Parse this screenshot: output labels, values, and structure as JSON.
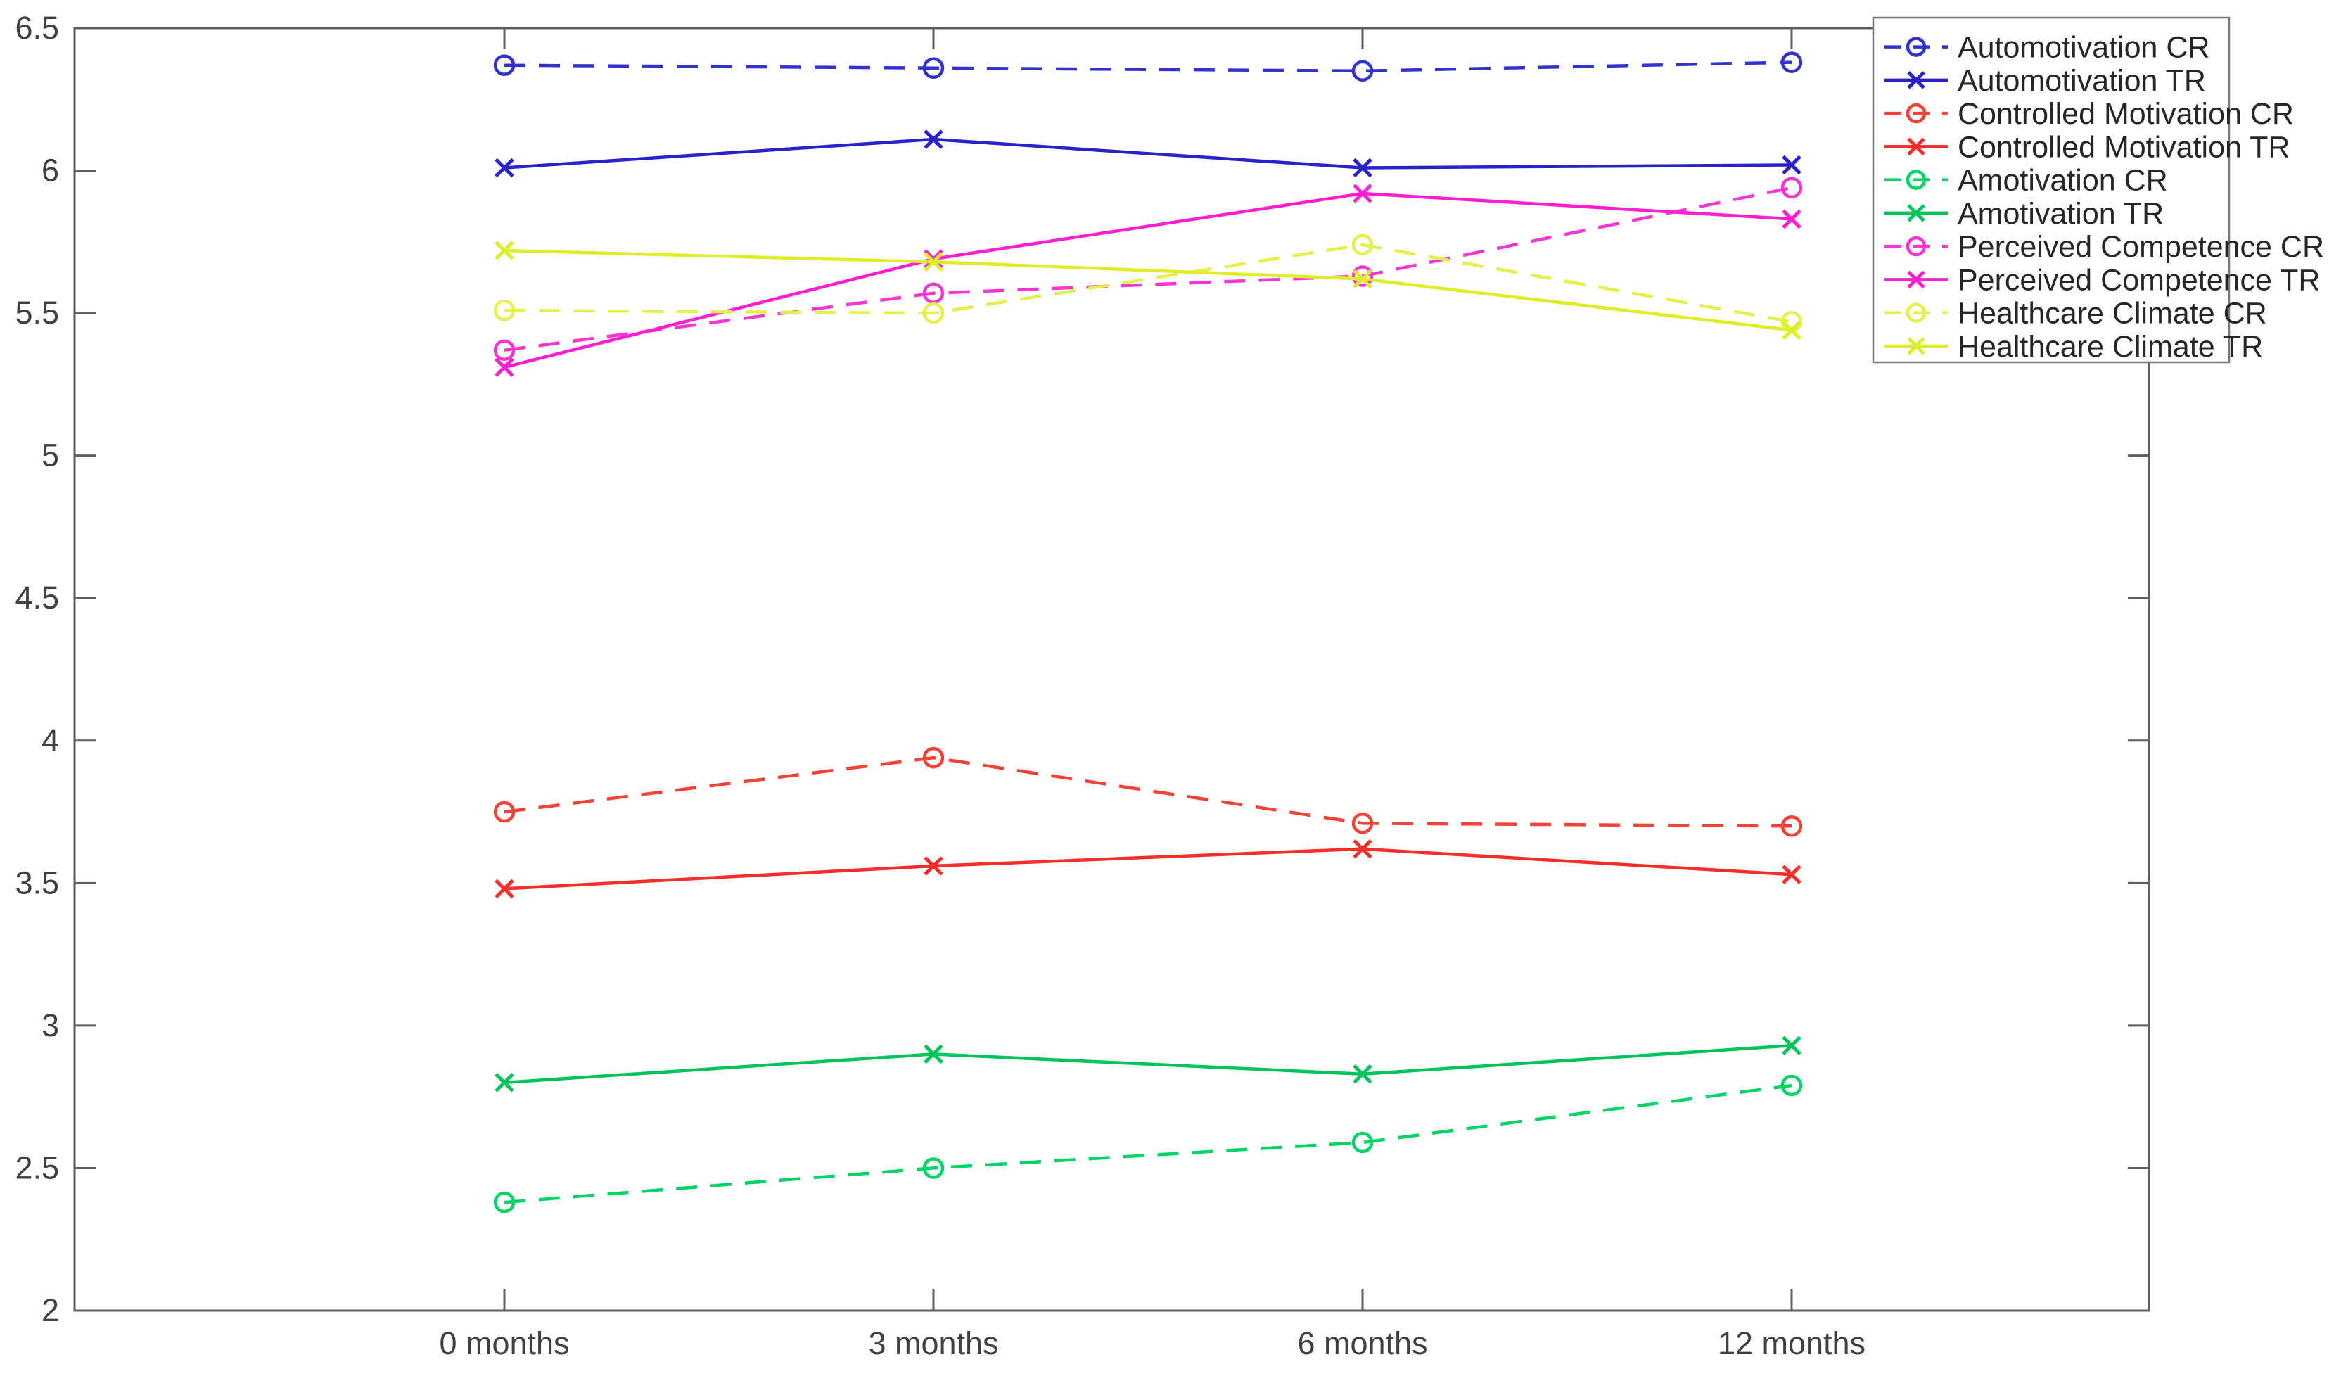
{
  "figure": {
    "background": "#ffffff",
    "axis_color": "#5e5e5e",
    "label_color": "#404040"
  },
  "chart_data": {
    "type": "line",
    "title": "",
    "xlabel": "",
    "ylabel": "",
    "categories": [
      "0 months",
      "3 months",
      "6 months",
      "12 months"
    ],
    "ylim": [
      2,
      6.5
    ],
    "ytick_labels": [
      "6.5",
      "6",
      "5.5",
      "5",
      "4.5",
      "4",
      "3.5",
      "3",
      "2.5",
      "2"
    ],
    "ytick_values": [
      6.5,
      6,
      5.5,
      5,
      4.5,
      4,
      3.5,
      3,
      2.5,
      2
    ],
    "grid": false,
    "legend_position": "northeast",
    "series": [
      {
        "name": "Automotivation CR",
        "color": "#3232cd",
        "line": "dashed",
        "marker": "circle",
        "values": [
          6.37,
          6.36,
          6.35,
          6.38
        ]
      },
      {
        "name": "Automotivation TR",
        "color": "#2b21c8",
        "line": "solid",
        "marker": "x",
        "values": [
          6.01,
          6.11,
          6.01,
          6.02
        ]
      },
      {
        "name": "Controlled Motivation CR",
        "color": "#f44336",
        "line": "dashed",
        "marker": "circle",
        "values": [
          3.75,
          3.94,
          3.71,
          3.7
        ]
      },
      {
        "name": "Controlled Motivation TR",
        "color": "#f42e28",
        "line": "solid",
        "marker": "x",
        "values": [
          3.48,
          3.56,
          3.62,
          3.53
        ]
      },
      {
        "name": "Amotivation CR",
        "color": "#00d466",
        "line": "dashed",
        "marker": "circle",
        "values": [
          2.38,
          2.5,
          2.59,
          2.79
        ]
      },
      {
        "name": "Amotivation TR",
        "color": "#00c35c",
        "line": "solid",
        "marker": "x",
        "values": [
          2.8,
          2.9,
          2.83,
          2.93
        ]
      },
      {
        "name": "Perceived Competence CR",
        "color": "#f536d2",
        "line": "dashed",
        "marker": "circle",
        "values": [
          5.37,
          5.57,
          5.63,
          5.94
        ]
      },
      {
        "name": "Perceived Competence TR",
        "color": "#ff1fd1",
        "line": "solid",
        "marker": "x",
        "values": [
          5.31,
          5.69,
          5.92,
          5.83
        ]
      },
      {
        "name": "Healthcare Climate CR",
        "color": "#e4f04d",
        "line": "dashed",
        "marker": "circle",
        "values": [
          5.51,
          5.5,
          5.74,
          5.47
        ]
      },
      {
        "name": "Healthcare Climate TR",
        "color": "#dded2a",
        "line": "solid",
        "marker": "x",
        "values": [
          5.72,
          5.68,
          5.62,
          5.44
        ]
      }
    ]
  }
}
